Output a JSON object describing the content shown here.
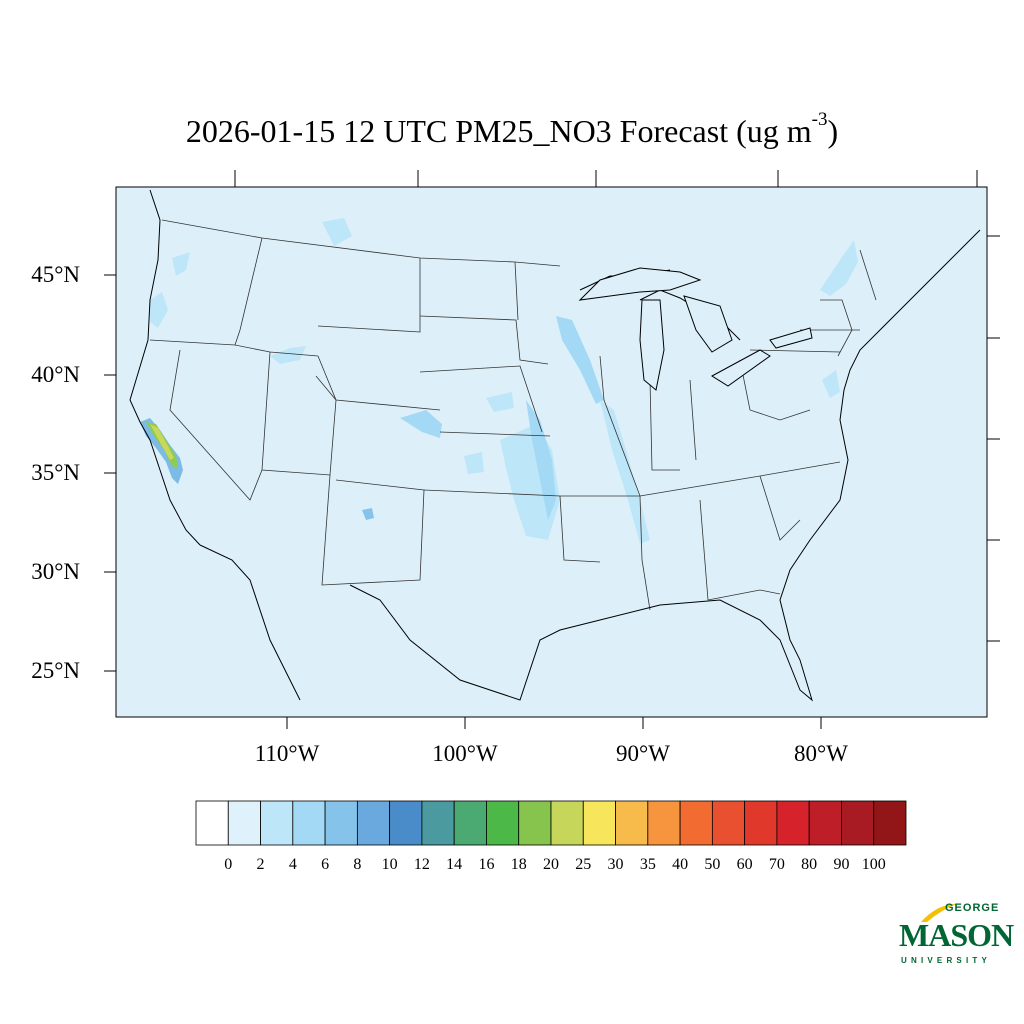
{
  "title": {
    "main": "2026-01-15 12 UTC PM25_NO3 Forecast (ug m",
    "exponent": "-3",
    "close": ")"
  },
  "map": {
    "background_color": "#ddf0fa",
    "latitude_labels": [
      "45°N",
      "40°N",
      "35°N",
      "30°N",
      "25°N"
    ],
    "longitude_labels": [
      "110°W",
      "100°W",
      "90°W",
      "80°W"
    ]
  },
  "colorbar": {
    "labels": [
      "0",
      "2",
      "4",
      "6",
      "8",
      "10",
      "12",
      "14",
      "16",
      "18",
      "20",
      "25",
      "30",
      "35",
      "40",
      "50",
      "60",
      "70",
      "80",
      "90",
      "100"
    ],
    "colors": [
      "#ffffff",
      "#dff2fb",
      "#bde6f8",
      "#a3d9f5",
      "#85c3ea",
      "#6aa9dd",
      "#4a8cc9",
      "#4a9aa0",
      "#4aaa72",
      "#4cb848",
      "#86c44e",
      "#c5d65a",
      "#f7e55c",
      "#f7bb4c",
      "#f7953e",
      "#f26c31",
      "#e85030",
      "#e0392b",
      "#d6232b",
      "#bd1e27",
      "#a81b22",
      "#921618"
    ]
  },
  "logo": {
    "line1": "GEORGE",
    "line2": "MASON",
    "line3": "UNIVERSITY",
    "accent_color": "#f2c200",
    "brand_color": "#006633"
  }
}
